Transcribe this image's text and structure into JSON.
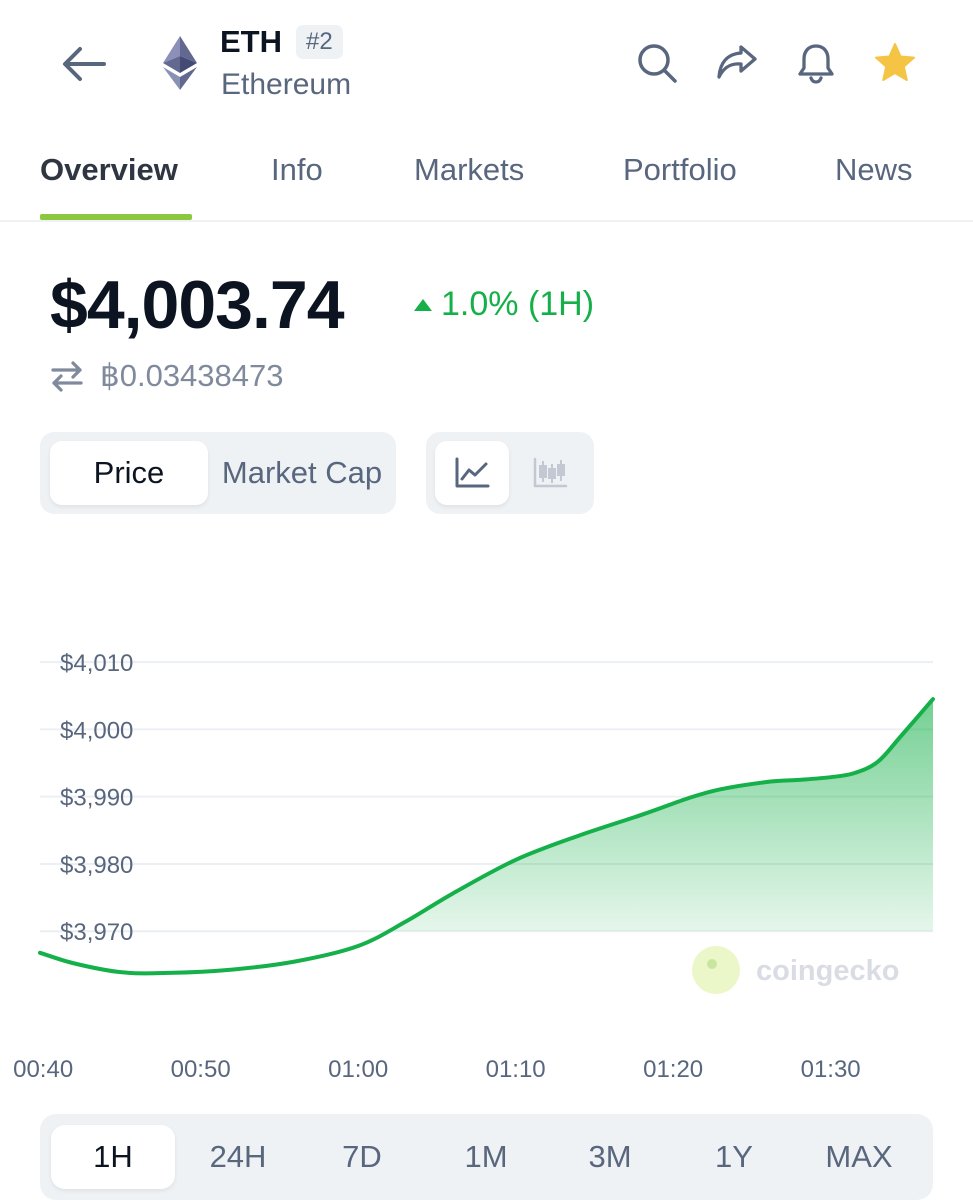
{
  "header": {
    "symbol": "ETH",
    "rank": "#2",
    "name": "Ethereum",
    "icons": [
      "back-arrow-icon",
      "ethereum-logo",
      "search-icon",
      "share-icon",
      "bell-icon",
      "star-icon"
    ]
  },
  "tabs": [
    {
      "label": "Overview",
      "active": true
    },
    {
      "label": "Info",
      "active": false
    },
    {
      "label": "Markets",
      "active": false
    },
    {
      "label": "Portfolio",
      "active": false
    },
    {
      "label": "News",
      "active": false
    }
  ],
  "price": {
    "value": "$4,003.74",
    "change": "1.0% (1H)",
    "btc_value": "฿0.03438473"
  },
  "chart_toggle": {
    "options": [
      "Price",
      "Market Cap"
    ],
    "selected": "Price"
  },
  "view_toggle": {
    "options": [
      "line-chart-icon",
      "candlestick-icon"
    ],
    "selected": "line-chart-icon"
  },
  "watermark": "coingecko",
  "colors": {
    "up": "#16b04a",
    "accent": "#8dc63f",
    "star": "#f6c445",
    "text": "#0d1421",
    "muted": "#58667e"
  },
  "chart_data": {
    "type": "area",
    "ylabel": "",
    "xlabel": "",
    "ylim": [
      3960,
      4015
    ],
    "yticks": [
      "$4,010",
      "$4,000",
      "$3,990",
      "$3,980",
      "$3,970"
    ],
    "ytick_values": [
      4010,
      4000,
      3990,
      3980,
      3970
    ],
    "xticks": [
      "00:40",
      "00:50",
      "01:00",
      "01:10",
      "01:20",
      "01:30"
    ],
    "xtick_values": [
      40,
      50,
      60,
      70,
      80,
      90
    ],
    "xlim": [
      39.8,
      96.5
    ],
    "series": [
      {
        "x": [
          39.8,
          42,
          45,
          48,
          52,
          56,
          60,
          63,
          66,
          70,
          74,
          78,
          81,
          83,
          86,
          88,
          90,
          91.5,
          93,
          94.5,
          96.5
        ],
        "values": [
          3966.8,
          3965.2,
          3963.9,
          3963.8,
          3964.3,
          3965.5,
          3967.8,
          3971.4,
          3975.6,
          3980.6,
          3984.2,
          3987.3,
          3989.8,
          3991.1,
          3992.2,
          3992.5,
          3992.9,
          3993.5,
          3995.2,
          3999.1,
          4004.5
        ]
      }
    ]
  },
  "time_ranges": {
    "options": [
      "1H",
      "24H",
      "7D",
      "1M",
      "3M",
      "1Y",
      "MAX"
    ],
    "selected": "1H"
  }
}
